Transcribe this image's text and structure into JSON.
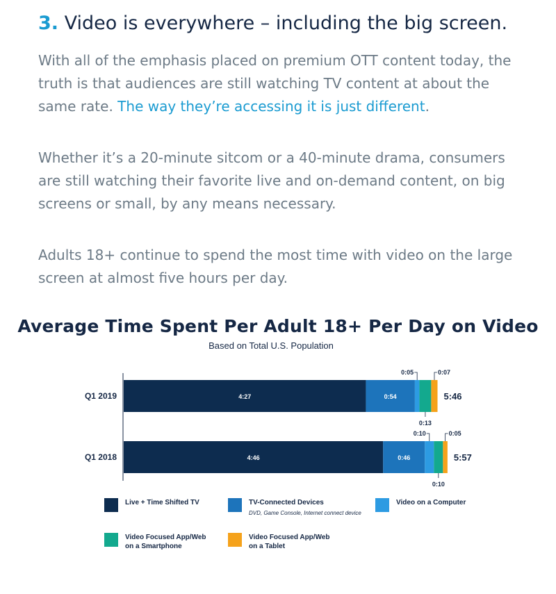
{
  "article": {
    "heading_number": "3.",
    "heading_text": "Video is everywhere – including the big screen.",
    "p1_text": "With all of the emphasis placed on premium OTT content today, the truth is that audiences are still watching TV content at about the same rate. ",
    "p1_link": "The way they’re accessing it is just different",
    "p1_end": ".",
    "p2": "Whether it’s a 20-minute sitcom or a 40-minute drama, consumers are still watching their favorite live and on-demand content, on big screens or small, by any means necessary.",
    "p3": "Adults 18+ continue to spend the most time with video on the large screen at almost five hours per day."
  },
  "colors": {
    "live_tv": "#0d2c4f",
    "tv_connected": "#1d74bb",
    "computer": "#2d9be2",
    "smartphone": "#13a98e",
    "tablet": "#f5a21b",
    "heading": "#152744",
    "accent": "#1a9bd1",
    "body_text": "#6c7a86"
  },
  "chart_data": {
    "type": "bar",
    "orientation": "horizontal",
    "stacked": true,
    "title": "Average Time Spent Per Adult 18+ Per Day on Video",
    "subtitle": "Based on Total U.S. Population",
    "categories": [
      "Q1 2019",
      "Q1 2018"
    ],
    "totals": [
      "5:46",
      "5:57"
    ],
    "series": [
      {
        "key": "live_tv",
        "name": "Live + Time Shifted TV",
        "values": [
          "4:27",
          "4:46"
        ]
      },
      {
        "key": "tv_connected",
        "name": "TV-Connected Devices",
        "note": "DVD, Game Console, Internet connect device",
        "values": [
          "0:54",
          "0:46"
        ]
      },
      {
        "key": "computer",
        "name": "Video on a Computer",
        "values": [
          "0:05",
          "0:10"
        ]
      },
      {
        "key": "smartphone",
        "name": "Video Focused App/Web on a Smartphone",
        "values": [
          "0:13",
          "0:10"
        ]
      },
      {
        "key": "tablet",
        "name": "Video Focused App/Web on a Tablet",
        "values": [
          "0:07",
          "0:05"
        ]
      }
    ],
    "legend_placement": "bottom",
    "grid": false
  },
  "legend": [
    {
      "key": "live_tv",
      "line1": "Live + Time Shifted TV",
      "line2": "",
      "sub": ""
    },
    {
      "key": "tv_connected",
      "line1": "TV-Connected Devices",
      "line2": "",
      "sub": "DVD, Game Console, Internet connect device"
    },
    {
      "key": "computer",
      "line1": "Video on a Computer",
      "line2": "",
      "sub": ""
    },
    {
      "key": "smartphone",
      "line1": "Video Focused App/Web",
      "line2": "on a Smartphone",
      "sub": ""
    },
    {
      "key": "tablet",
      "line1": "Video Focused App/Web",
      "line2": "on a Tablet",
      "sub": ""
    }
  ]
}
